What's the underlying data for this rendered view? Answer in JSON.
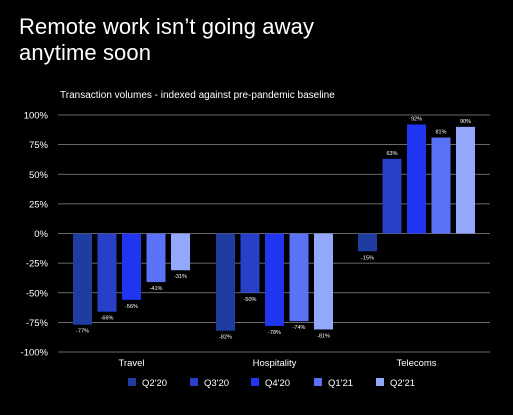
{
  "header": {
    "title": "Remote work isn’t going away anytime soon"
  },
  "chart_data": {
    "type": "bar",
    "title": "Transaction volumes - indexed against pre-pandemic baseline",
    "xlabel": "",
    "ylabel": "",
    "ylim": [
      -100,
      100
    ],
    "yticks": [
      100,
      75,
      50,
      25,
      0,
      -25,
      -50,
      -75,
      -100
    ],
    "ytick_labels": [
      "100%",
      "75%",
      "50%",
      "25%",
      "0%",
      "-25%",
      "-50%",
      "-75%",
      "-100%"
    ],
    "grid": true,
    "legend_position": "bottom",
    "categories": [
      "Travel",
      "Hospitality",
      "Telecoms"
    ],
    "series": [
      {
        "name": "Q2'20",
        "color": "#1f3da0",
        "values": [
          -77,
          -82,
          -15
        ],
        "labels": [
          "-77%",
          "-82%",
          "-15%"
        ]
      },
      {
        "name": "Q3'20",
        "color": "#2840c8",
        "values": [
          -66,
          -50,
          63
        ],
        "labels": [
          "-66%",
          "-50%",
          "63%"
        ]
      },
      {
        "name": "Q4'20",
        "color": "#1f35f0",
        "values": [
          -56,
          -78,
          92
        ],
        "labels": [
          "-56%",
          "-78%",
          "92%"
        ]
      },
      {
        "name": "Q1'21",
        "color": "#5a72f5",
        "values": [
          -41,
          -74,
          81
        ],
        "labels": [
          "-41%",
          "-74%",
          "81%"
        ]
      },
      {
        "name": "Q2'21",
        "color": "#93a8fa",
        "values": [
          -31,
          -81,
          90
        ],
        "labels": [
          "-31%",
          "-81%",
          "90%"
        ]
      }
    ]
  }
}
